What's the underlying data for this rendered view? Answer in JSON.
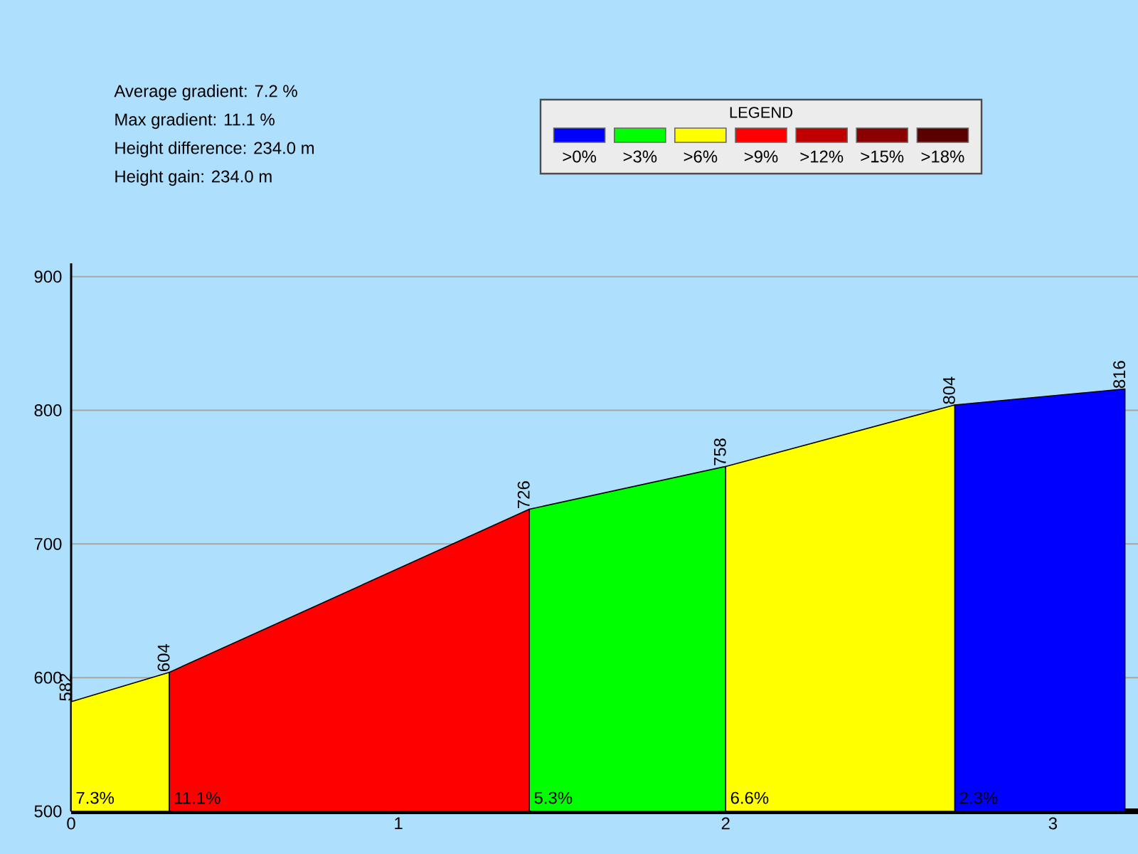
{
  "chart_data": {
    "type": "area",
    "legend_title": "LEGEND",
    "legend": "top",
    "grid": "y",
    "marker": "none",
    "x": [
      0,
      0.3,
      1.4,
      2.0,
      2.7,
      3.22
    ],
    "xlim": [
      0,
      3.26
    ],
    "xticks": [
      0,
      1,
      2,
      3
    ],
    "ylim": [
      500,
      910
    ],
    "yticks": [
      500,
      600,
      700,
      800,
      900
    ],
    "series": [
      {
        "name": ">0%",
        "color": "#0000ff",
        "values": [
          null,
          null,
          null,
          null,
          804,
          816
        ],
        "value_labels": [
          null,
          null,
          null,
          null,
          "804",
          "816"
        ]
      },
      {
        "name": ">3%",
        "color": "#00ff00",
        "values": [
          null,
          null,
          726,
          758,
          null,
          null
        ],
        "value_labels": [
          null,
          null,
          "726",
          "758",
          null,
          null
        ]
      },
      {
        "name": ">6%",
        "color": "#ffff00",
        "values": [
          582,
          604,
          null,
          758,
          804,
          null
        ],
        "value_labels": [
          "582",
          null,
          null,
          null,
          null,
          null
        ]
      },
      {
        "name": ">9%",
        "color": "#ff0000",
        "values": [
          null,
          604,
          726,
          null,
          null,
          null
        ],
        "value_labels": [
          null,
          "604",
          null,
          null,
          null,
          null
        ]
      },
      {
        "name": ">12%",
        "color": "#c00000",
        "values": [
          null,
          null,
          null,
          null,
          null,
          null
        ]
      },
      {
        "name": ">15%",
        "color": "#8b0000",
        "values": [
          null,
          null,
          null,
          null,
          null,
          null
        ]
      },
      {
        "name": ">18%",
        "color": "#5a0000",
        "values": [
          null,
          null,
          null,
          null,
          null,
          null
        ]
      }
    ],
    "annotations": [
      "Average gradient: 7.2 %",
      "Max gradient: 11.1 %",
      "Height difference: 234.0 m",
      "Height gain: 234.0 m",
      {
        "text": "7.3%",
        "x": 0,
        "y": 500
      },
      {
        "text": "11.1%",
        "x": 0.3,
        "y": 500
      },
      {
        "text": "5.3%",
        "x": 1.4,
        "y": 500
      },
      {
        "text": "6.6%",
        "x": 2.0,
        "y": 500
      },
      {
        "text": "2.3%",
        "x": 2.7,
        "y": 500
      }
    ]
  }
}
